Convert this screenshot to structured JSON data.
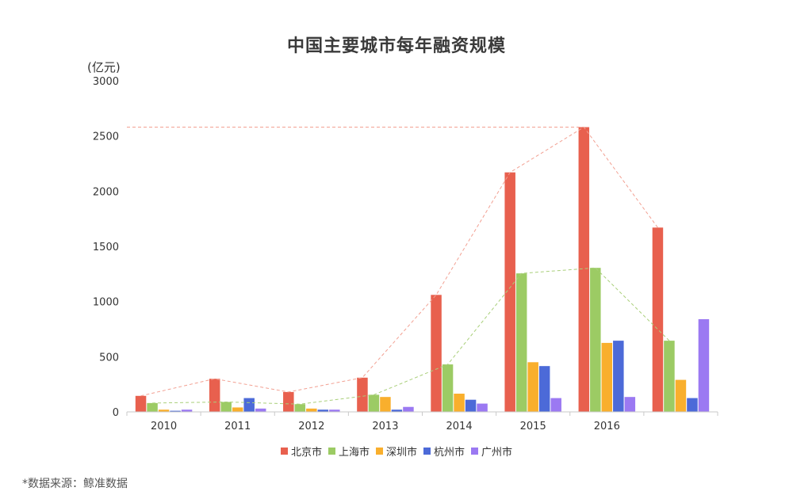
{
  "chart_data": {
    "type": "bar",
    "title": "中国主要城市每年融资规模",
    "unit_label": "(亿元)",
    "ylim": [
      0,
      3000
    ],
    "yticks": [
      "0",
      "500",
      "1000",
      "1500",
      "2000",
      "2500",
      "3000"
    ],
    "categories": [
      "2010",
      "2011",
      "2012",
      "2013",
      "2014",
      "2015",
      "2016",
      ""
    ],
    "series": [
      {
        "name": "北京市",
        "color": "#E8604E",
        "values": [
          145,
          300,
          180,
          310,
          1060,
          2170,
          2580,
          1670
        ]
      },
      {
        "name": "上海市",
        "color": "#9CCB64",
        "values": [
          80,
          90,
          70,
          155,
          430,
          1255,
          1305,
          645
        ]
      },
      {
        "name": "深圳市",
        "color": "#F9AF2D",
        "values": [
          20,
          40,
          30,
          135,
          165,
          450,
          625,
          290
        ]
      },
      {
        "name": "杭州市",
        "color": "#4C6AD8",
        "values": [
          10,
          125,
          20,
          20,
          110,
          415,
          645,
          125
        ]
      },
      {
        "name": "广州市",
        "color": "#9B79F2",
        "values": [
          20,
          30,
          20,
          45,
          75,
          125,
          135,
          840
        ]
      }
    ],
    "trend_lines": [
      {
        "series": "北京市",
        "color": "#F2A092"
      },
      {
        "series": "上海市",
        "color": "#A9CF7A"
      }
    ],
    "reference_line": {
      "value": 2580,
      "color": "#F2A092"
    }
  },
  "source_note": "*数据来源：鲸准数据"
}
